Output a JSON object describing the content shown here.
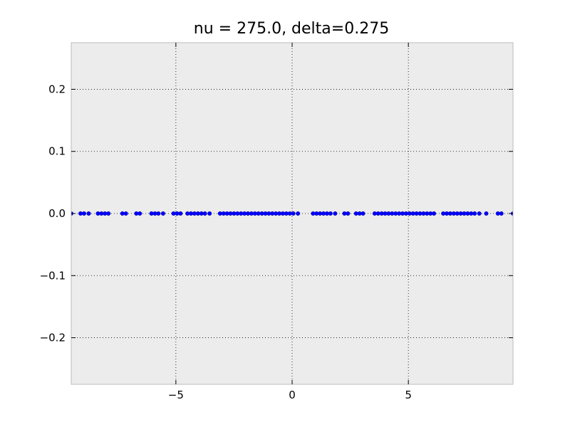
{
  "chart_data": {
    "type": "scatter",
    "title": "nu = 275.0, delta=0.275",
    "xlabel": "",
    "ylabel": "",
    "xlim": [
      -9.5,
      9.5
    ],
    "ylim": [
      -0.275,
      0.275
    ],
    "grid": true,
    "background": "#ececec",
    "marker_color": "#0000ff",
    "x_ticks": [
      {
        "value": -5,
        "label": "−5"
      },
      {
        "value": 0,
        "label": "0"
      },
      {
        "value": 5,
        "label": "5"
      }
    ],
    "y_ticks": [
      {
        "value": 0.2,
        "label": "0.2"
      },
      {
        "value": 0.1,
        "label": "0.1"
      },
      {
        "value": 0.0,
        "label": "0.0"
      },
      {
        "value": -0.1,
        "label": "−0.1"
      },
      {
        "value": -0.2,
        "label": "−0.2"
      }
    ],
    "series": [
      {
        "x": [
          -9.5,
          -9.1,
          -8.95,
          -8.75,
          -8.35,
          -8.2,
          -8.05,
          -7.9,
          -7.3,
          -7.15,
          -6.7,
          -6.55,
          -6.05,
          -5.9,
          -5.75,
          -5.55,
          -5.1,
          -4.95,
          -4.8,
          -4.5,
          -4.35,
          -4.2,
          -4.05,
          -3.9,
          -3.75,
          -3.55,
          -3.1,
          -2.95,
          -2.8,
          -2.65,
          -2.5,
          -2.35,
          -2.2,
          -2.05,
          -1.9,
          -1.75,
          -1.6,
          -1.45,
          -1.3,
          -1.15,
          -1.0,
          -0.85,
          -0.7,
          -0.55,
          -0.4,
          -0.25,
          -0.1,
          0.05,
          0.25,
          0.9,
          1.05,
          1.2,
          1.35,
          1.5,
          1.65,
          1.85,
          2.25,
          2.4,
          2.75,
          2.9,
          3.05,
          3.55,
          3.7,
          3.85,
          4.0,
          4.15,
          4.3,
          4.45,
          4.6,
          4.75,
          4.9,
          5.05,
          5.2,
          5.35,
          5.5,
          5.65,
          5.8,
          5.95,
          6.1,
          6.5,
          6.65,
          6.8,
          6.95,
          7.1,
          7.25,
          7.4,
          7.55,
          7.7,
          7.85,
          8.05,
          8.35,
          8.85,
          9.0,
          9.5
        ],
        "y": [
          0,
          0,
          0,
          0,
          0,
          0,
          0,
          0,
          0,
          0,
          0,
          0,
          0,
          0,
          0,
          0,
          0,
          0,
          0,
          0,
          0,
          0,
          0,
          0,
          0,
          0,
          0,
          0,
          0,
          0,
          0,
          0,
          0,
          0,
          0,
          0,
          0,
          0,
          0,
          0,
          0,
          0,
          0,
          0,
          0,
          0,
          0,
          0,
          0,
          0,
          0,
          0,
          0,
          0,
          0,
          0,
          0,
          0,
          0,
          0,
          0,
          0,
          0,
          0,
          0,
          0,
          0,
          0,
          0,
          0,
          0,
          0,
          0,
          0,
          0,
          0,
          0,
          0,
          0,
          0,
          0,
          0,
          0,
          0,
          0,
          0,
          0,
          0,
          0,
          0,
          0,
          0,
          0,
          0
        ]
      }
    ]
  }
}
